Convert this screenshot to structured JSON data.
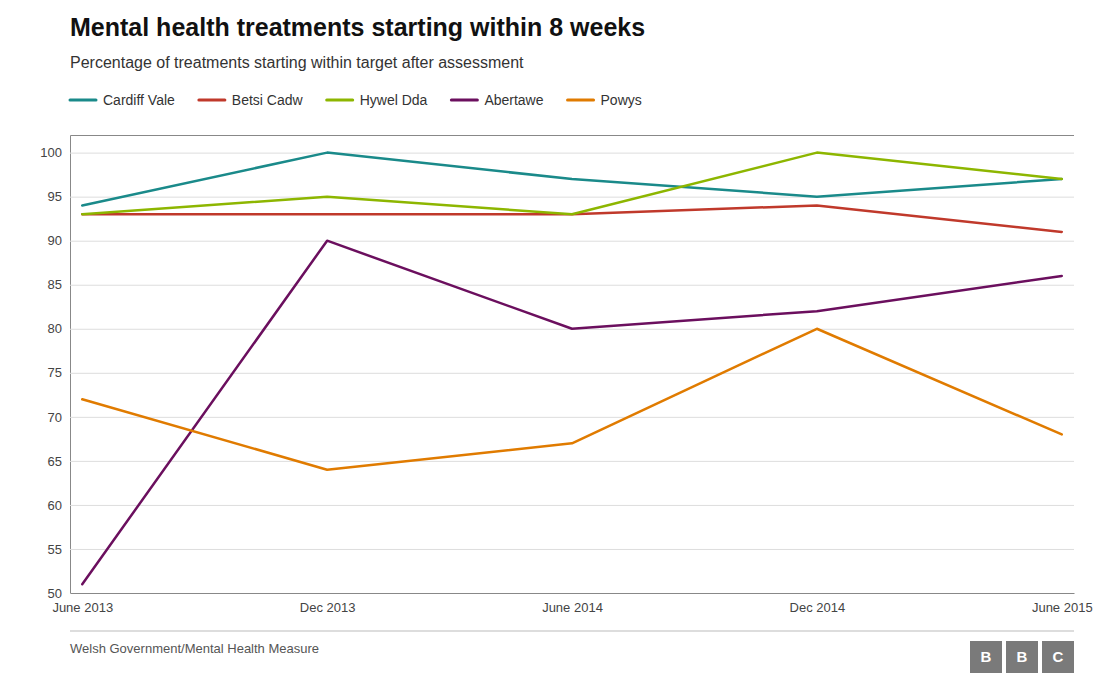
{
  "chart_data": {
    "type": "line",
    "title": "Mental health treatments starting within 8 weeks",
    "subtitle": "Percentage of treatments starting within target after assessment",
    "source": "Welsh Government/Mental Health Measure",
    "annotations": [
      "BBC"
    ],
    "categories": [
      "June 2013",
      "Dec 2013",
      "June 2014",
      "Dec 2014",
      "June 2015"
    ],
    "series": [
      {
        "name": "Cardiff Vale",
        "color": "#1a8a8a",
        "values": [
          94,
          100,
          97,
          95,
          97
        ]
      },
      {
        "name": "Betsi Cadw",
        "color": "#c0392b",
        "values": [
          93,
          93,
          93,
          94,
          91
        ]
      },
      {
        "name": "Hywel Dda",
        "color": "#8db600",
        "values": [
          93,
          95,
          93,
          100,
          97
        ]
      },
      {
        "name": "Abertawe",
        "color": "#6b0f5e",
        "values": [
          51,
          90,
          80,
          82,
          86
        ]
      },
      {
        "name": "Powys",
        "color": "#e07b00",
        "values": [
          72,
          64,
          67,
          80,
          68
        ]
      }
    ],
    "ylim": [
      50,
      102
    ],
    "yticks": [
      50,
      55,
      60,
      65,
      70,
      75,
      80,
      85,
      90,
      95,
      100
    ],
    "grid": true,
    "legend": "top left"
  }
}
